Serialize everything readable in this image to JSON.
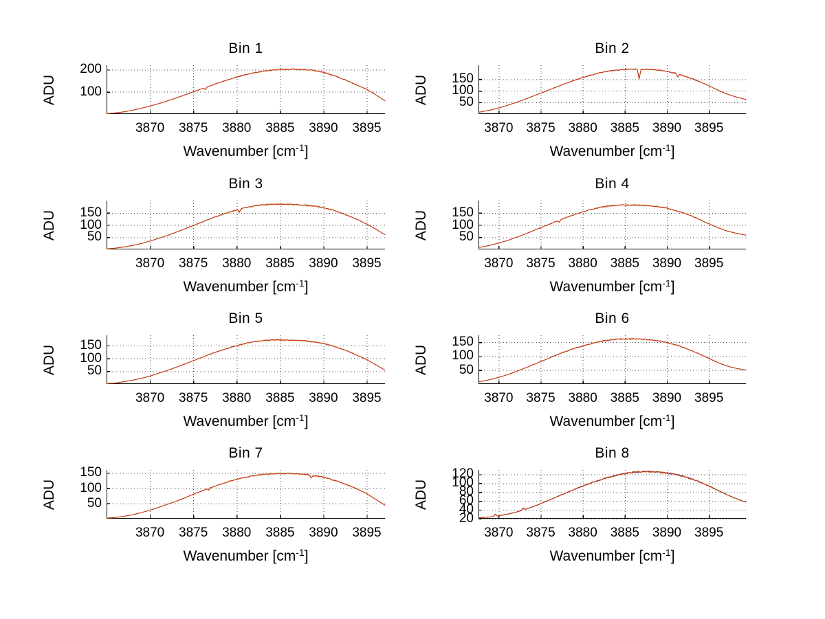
{
  "figure": {
    "background": "#ffffff",
    "frame_color": "#c9c9c9"
  },
  "axes": {
    "ylabel": "ADU",
    "xlabel": "Wavenumber [cm⁻¹]",
    "xlabel_prefix": "Wavenumber [cm",
    "xlabel_sup": "-1",
    "xlabel_suffix": "]",
    "xticks": [
      3870,
      3875,
      3880,
      3885,
      3890,
      3895
    ],
    "grid_style": "dotted",
    "grid_color": "#4a4a4a",
    "axis_color": "#000000",
    "tick_label_color": "#000000"
  },
  "chart_data": {
    "type": "line",
    "x_start": 3865,
    "x_step": 1,
    "legend": "none",
    "subplots": [
      {
        "title": "Bin 1",
        "xlim": [
          3865.0,
          3897.1
        ],
        "ylim": [
          0,
          220
        ],
        "yticks": [
          100,
          200
        ],
        "colors": [
          "#dd8833",
          "#c2391e"
        ],
        "noise": 2.4,
        "spikes": [
          {
            "x": 3876.4,
            "dy": -9
          }
        ],
        "values": [
          2,
          5,
          10,
          17,
          26,
          36,
          47,
          59,
          72,
          86,
          100,
          114,
          128,
          142,
          155,
          167,
          177,
          186,
          193,
          198,
          201,
          202,
          202,
          200,
          196,
          188,
          176,
          162,
          146,
          128,
          112,
          88,
          62,
          40,
          22,
          10
        ]
      },
      {
        "title": "Bin 2",
        "xlim": [
          3867.6,
          3899.4
        ],
        "ylim": [
          0,
          210
        ],
        "yticks": [
          50,
          100,
          150
        ],
        "colors": [
          "#dd8833",
          "#c2391e"
        ],
        "noise": 2.4,
        "spikes": [
          {
            "x": 3886.7,
            "dy": -43
          },
          {
            "x": 3891.3,
            "dy": -13
          }
        ],
        "values": [
          1,
          2,
          5,
          10,
          17,
          26,
          37,
          49,
          62,
          76,
          90,
          104,
          118,
          132,
          145,
          157,
          168,
          177,
          184,
          189,
          192,
          193,
          193,
          192,
          189,
          184,
          176,
          165,
          152,
          138,
          122,
          104,
          88,
          76,
          66,
          58
        ]
      },
      {
        "title": "Bin 3",
        "xlim": [
          3865.0,
          3897.1
        ],
        "ylim": [
          0,
          200
        ],
        "yticks": [
          50,
          100,
          150
        ],
        "colors": [
          "#dd8833",
          "#c2391e"
        ],
        "noise": 2.4,
        "spikes": [
          {
            "x": 3880.3,
            "dy": -13
          }
        ],
        "values": [
          2,
          5,
          10,
          16,
          24,
          34,
          45,
          57,
          70,
          84,
          98,
          112,
          126,
          139,
          151,
          162,
          171,
          178,
          183,
          185,
          185,
          184,
          183,
          181,
          177,
          171,
          162,
          150,
          136,
          121,
          104,
          84,
          62,
          48,
          36,
          26
        ]
      },
      {
        "title": "Bin 4",
        "xlim": [
          3867.6,
          3899.4
        ],
        "ylim": [
          0,
          200
        ],
        "yticks": [
          50,
          100,
          150
        ],
        "colors": [
          "#dd8833",
          "#c2391e"
        ],
        "noise": 2.4,
        "spikes": [
          {
            "x": 3877.2,
            "dy": -8
          }
        ],
        "values": [
          1,
          2,
          5,
          10,
          17,
          26,
          36,
          48,
          61,
          75,
          89,
          103,
          117,
          130,
          143,
          154,
          164,
          172,
          178,
          181,
          182,
          182,
          181,
          179,
          175,
          169,
          160,
          149,
          136,
          121,
          105,
          90,
          77,
          68,
          61,
          55
        ]
      },
      {
        "title": "Bin 5",
        "xlim": [
          3865.0,
          3897.1
        ],
        "ylim": [
          0,
          190
        ],
        "yticks": [
          50,
          100,
          150
        ],
        "colors": [
          "#dd8833",
          "#c2391e"
        ],
        "noise": 2.2,
        "spikes": [],
        "values": [
          2,
          4,
          9,
          15,
          22,
          31,
          42,
          53,
          65,
          78,
          91,
          104,
          117,
          129,
          140,
          150,
          158,
          165,
          169,
          172,
          172,
          171,
          170,
          168,
          164,
          158,
          149,
          138,
          125,
          110,
          95,
          76,
          56,
          42,
          30,
          20
        ]
      },
      {
        "title": "Bin 6",
        "xlim": [
          3867.6,
          3899.4
        ],
        "ylim": [
          0,
          175
        ],
        "yticks": [
          50,
          100,
          150
        ],
        "colors": [
          "#dd8833",
          "#c2391e"
        ],
        "noise": 2.2,
        "spikes": [],
        "values": [
          1,
          2,
          5,
          10,
          16,
          24,
          33,
          44,
          56,
          68,
          81,
          93,
          106,
          117,
          128,
          137,
          145,
          152,
          157,
          160,
          162,
          162,
          161,
          159,
          155,
          149,
          141,
          131,
          119,
          106,
          92,
          78,
          66,
          58,
          52,
          47
        ]
      },
      {
        "title": "Bin 7",
        "xlim": [
          3865.0,
          3897.1
        ],
        "ylim": [
          0,
          160
        ],
        "yticks": [
          50,
          100,
          150
        ],
        "colors": [
          "#dd8833",
          "#c2391e"
        ],
        "noise": 2.0,
        "spikes": [
          {
            "x": 3876.8,
            "dy": -6
          },
          {
            "x": 3888.6,
            "dy": -9
          }
        ],
        "values": [
          2,
          4,
          8,
          13,
          20,
          28,
          37,
          47,
          57,
          68,
          80,
          91,
          102,
          112,
          121,
          129,
          136,
          141,
          145,
          147,
          148,
          148,
          147,
          145,
          141,
          136,
          128,
          119,
          108,
          96,
          82,
          64,
          46,
          34,
          24,
          16
        ]
      },
      {
        "title": "Bin 8",
        "xlim": [
          3867.6,
          3899.4
        ],
        "ylim": [
          20,
          130
        ],
        "yticks": [
          20,
          40,
          60,
          80,
          100,
          120
        ],
        "colors": [
          "#3440b4",
          "#dd8833",
          "#c2391e"
        ],
        "noise": 1.8,
        "spikes": [
          {
            "x": 3869.6,
            "dy": 5
          },
          {
            "x": 3872.9,
            "dy": 5
          }
        ],
        "values": [
          20.5,
          21,
          21.5,
          22.5,
          24,
          26.5,
          30,
          34.5,
          40,
          46.5,
          54,
          62,
          70,
          78,
          86,
          94,
          101,
          107,
          113,
          118,
          122,
          124.5,
          126,
          126,
          125,
          123,
          120,
          115.5,
          109.5,
          102,
          93.5,
          84.5,
          75.5,
          67,
          60,
          54
        ]
      }
    ]
  }
}
